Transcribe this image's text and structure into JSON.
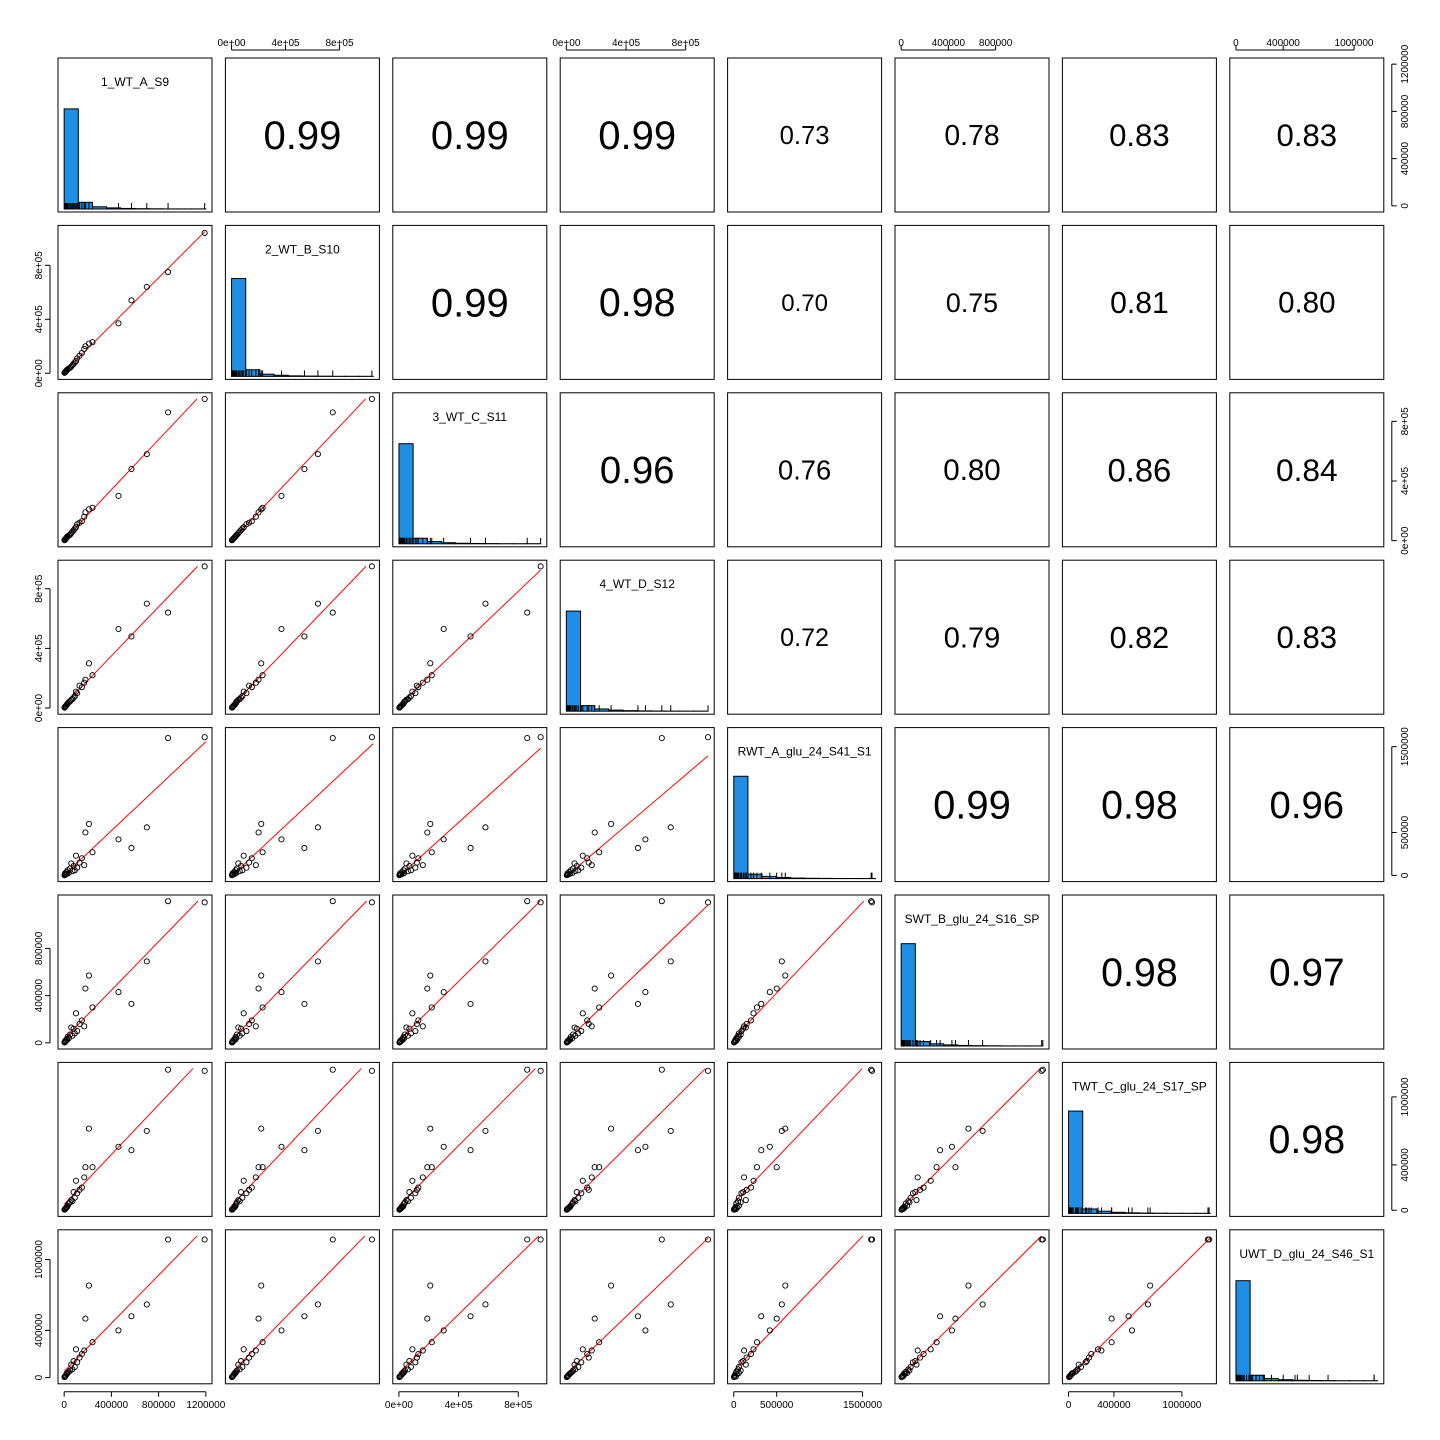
{
  "chart_data": {
    "type": "scatter-matrix",
    "variables": [
      "1_WT_A_S9",
      "2_WT_B_S10",
      "3_WT_C_S11",
      "4_WT_D_S12",
      "RWT_A_glu_24_S41_S1",
      "SWT_B_glu_24_S16_SP",
      "TWT_C_glu_24_S17_SP",
      "UWT_D_glu_24_S46_S1"
    ],
    "correlations": [
      [
        null,
        "0.99",
        "0.99",
        "0.99",
        "0.73",
        "0.78",
        "0.83",
        "0.83"
      ],
      [
        null,
        null,
        "0.99",
        "0.98",
        "0.70",
        "0.75",
        "0.81",
        "0.80"
      ],
      [
        null,
        null,
        null,
        "0.96",
        "0.76",
        "0.80",
        "0.86",
        "0.84"
      ],
      [
        null,
        null,
        null,
        null,
        "0.72",
        "0.79",
        "0.82",
        "0.83"
      ],
      [
        null,
        null,
        null,
        null,
        null,
        "0.99",
        "0.98",
        "0.96"
      ],
      [
        null,
        null,
        null,
        null,
        null,
        null,
        "0.98",
        "0.97"
      ],
      [
        null,
        null,
        null,
        null,
        null,
        null,
        null,
        "0.98"
      ],
      [
        null,
        null,
        null,
        null,
        null,
        null,
        null,
        null
      ]
    ],
    "ranges": [
      [
        0,
        1200000
      ],
      [
        0,
        1050000
      ],
      [
        0,
        950000
      ],
      [
        0,
        950000
      ],
      [
        0,
        1650000
      ],
      [
        0,
        1200000
      ],
      [
        0,
        1250000
      ],
      [
        0,
        1200000
      ]
    ],
    "ticks": [
      {
        "values": [
          0,
          400000,
          800000,
          1200000
        ],
        "labels": [
          "0",
          "400000",
          "800000",
          "1200000"
        ]
      },
      {
        "values": [
          0,
          400000,
          800000
        ],
        "labels": [
          "0e+00",
          "4e+05",
          "8e+05"
        ]
      },
      {
        "values": [
          0,
          400000,
          800000
        ],
        "labels": [
          "0e+00",
          "4e+05",
          "8e+05"
        ]
      },
      {
        "values": [
          0,
          400000,
          800000
        ],
        "labels": [
          "0e+00",
          "4e+05",
          "8e+05"
        ]
      },
      {
        "values": [
          0,
          500000,
          1500000
        ],
        "labels": [
          "0",
          "500000",
          "1500000"
        ]
      },
      {
        "values": [
          0,
          400000,
          800000
        ],
        "labels": [
          "0",
          "400000",
          "800000"
        ]
      },
      {
        "values": [
          0,
          400000,
          1000000
        ],
        "labels": [
          "0",
          "400000",
          "1000000"
        ]
      },
      {
        "values": [
          0,
          400000,
          1000000
        ],
        "labels": [
          "0",
          "400000",
          "1000000"
        ]
      }
    ],
    "axis_labels": {
      "top": [
        null,
        1,
        null,
        3,
        null,
        5,
        null,
        7
      ],
      "bottom": [
        0,
        null,
        2,
        null,
        4,
        null,
        6,
        null
      ],
      "left": [
        null,
        1,
        null,
        3,
        null,
        5,
        null,
        7
      ],
      "right": [
        0,
        null,
        2,
        null,
        4,
        null,
        6,
        null
      ]
    },
    "points": [
      [
        1190000,
        1040000,
        950000,
        950000,
        1610000,
        1190000,
        1230000,
        1170000
      ],
      [
        880000,
        750000,
        860000,
        640000,
        1600000,
        1200000,
        1240000,
        1170000
      ],
      [
        700000,
        640000,
        580000,
        700000,
        560000,
        690000,
        700000,
        620000
      ],
      [
        570000,
        540000,
        480000,
        480000,
        320000,
        330000,
        530000,
        520000
      ],
      [
        460000,
        370000,
        300000,
        530000,
        420000,
        430000,
        560000,
        400000
      ],
      [
        210000,
        220000,
        210000,
        300000,
        600000,
        570000,
        720000,
        780000
      ],
      [
        180000,
        200000,
        190000,
        190000,
        500000,
        460000,
        380000,
        500000
      ],
      [
        240000,
        230000,
        220000,
        220000,
        270000,
        300000,
        380000,
        300000
      ],
      [
        170000,
        180000,
        160000,
        170000,
        120000,
        140000,
        290000,
        230000
      ],
      [
        150000,
        150000,
        130000,
        140000,
        200000,
        190000,
        200000,
        200000
      ],
      [
        130000,
        130000,
        120000,
        150000,
        150000,
        160000,
        180000,
        170000
      ],
      [
        110000,
        110000,
        110000,
        100000,
        90000,
        100000,
        150000,
        130000
      ],
      [
        100000,
        90000,
        90000,
        110000,
        230000,
        250000,
        260000,
        240000
      ],
      [
        90000,
        80000,
        80000,
        80000,
        60000,
        80000,
        110000,
        90000
      ],
      [
        80000,
        70000,
        70000,
        70000,
        110000,
        120000,
        160000,
        140000
      ],
      [
        70000,
        60000,
        60000,
        60000,
        50000,
        60000,
        80000,
        70000
      ],
      [
        60000,
        50000,
        50000,
        55000,
        140000,
        130000,
        90000,
        110000
      ],
      [
        50000,
        40000,
        40000,
        45000,
        80000,
        70000,
        70000,
        60000
      ],
      [
        40000,
        35000,
        35000,
        40000,
        30000,
        40000,
        60000,
        50000
      ],
      [
        30000,
        30000,
        30000,
        30000,
        60000,
        50000,
        40000,
        40000
      ],
      [
        25000,
        25000,
        25000,
        25000,
        20000,
        25000,
        30000,
        35000
      ],
      [
        20000,
        20000,
        20000,
        20000,
        40000,
        30000,
        25000,
        30000
      ],
      [
        15000,
        15000,
        15000,
        15000,
        15000,
        20000,
        20000,
        20000
      ],
      [
        10000,
        10000,
        10000,
        10000,
        10000,
        10000,
        15000,
        15000
      ],
      [
        8000,
        8000,
        8000,
        8000,
        25000,
        15000,
        10000,
        10000
      ],
      [
        5000,
        5000,
        5000,
        5000,
        5000,
        5000,
        8000,
        8000
      ],
      [
        3000,
        3000,
        3000,
        3000,
        3000,
        3000,
        5000,
        5000
      ]
    ],
    "histograms": [
      [
        0.9,
        0.06,
        0.02,
        0.01,
        0.005,
        0.003,
        0.002,
        0.001,
        0.001,
        0.001
      ],
      [
        0.88,
        0.06,
        0.02,
        0.01,
        0.005,
        0.003,
        0.002,
        0.001,
        0.001,
        0.001
      ],
      [
        0.9,
        0.05,
        0.02,
        0.01,
        0.005,
        0.003,
        0.002,
        0.001,
        0.001,
        0.001
      ],
      [
        0.9,
        0.05,
        0.02,
        0.01,
        0.005,
        0.003,
        0.002,
        0.001,
        0.001,
        0.001
      ],
      [
        0.92,
        0.04,
        0.02,
        0.01,
        0.005,
        0.003,
        0.002,
        0.001,
        0.001,
        0.001
      ],
      [
        0.92,
        0.04,
        0.02,
        0.01,
        0.005,
        0.003,
        0.002,
        0.001,
        0.001,
        0.001
      ],
      [
        0.92,
        0.04,
        0.02,
        0.01,
        0.005,
        0.003,
        0.002,
        0.001,
        0.001,
        0.001
      ],
      [
        0.9,
        0.05,
        0.02,
        0.01,
        0.005,
        0.003,
        0.002,
        0.001,
        0.001,
        0.001
      ]
    ],
    "hist_fill": "#1f8fe5",
    "smooth_color": "#ff0000",
    "point_color": "#000000",
    "grid": false
  }
}
